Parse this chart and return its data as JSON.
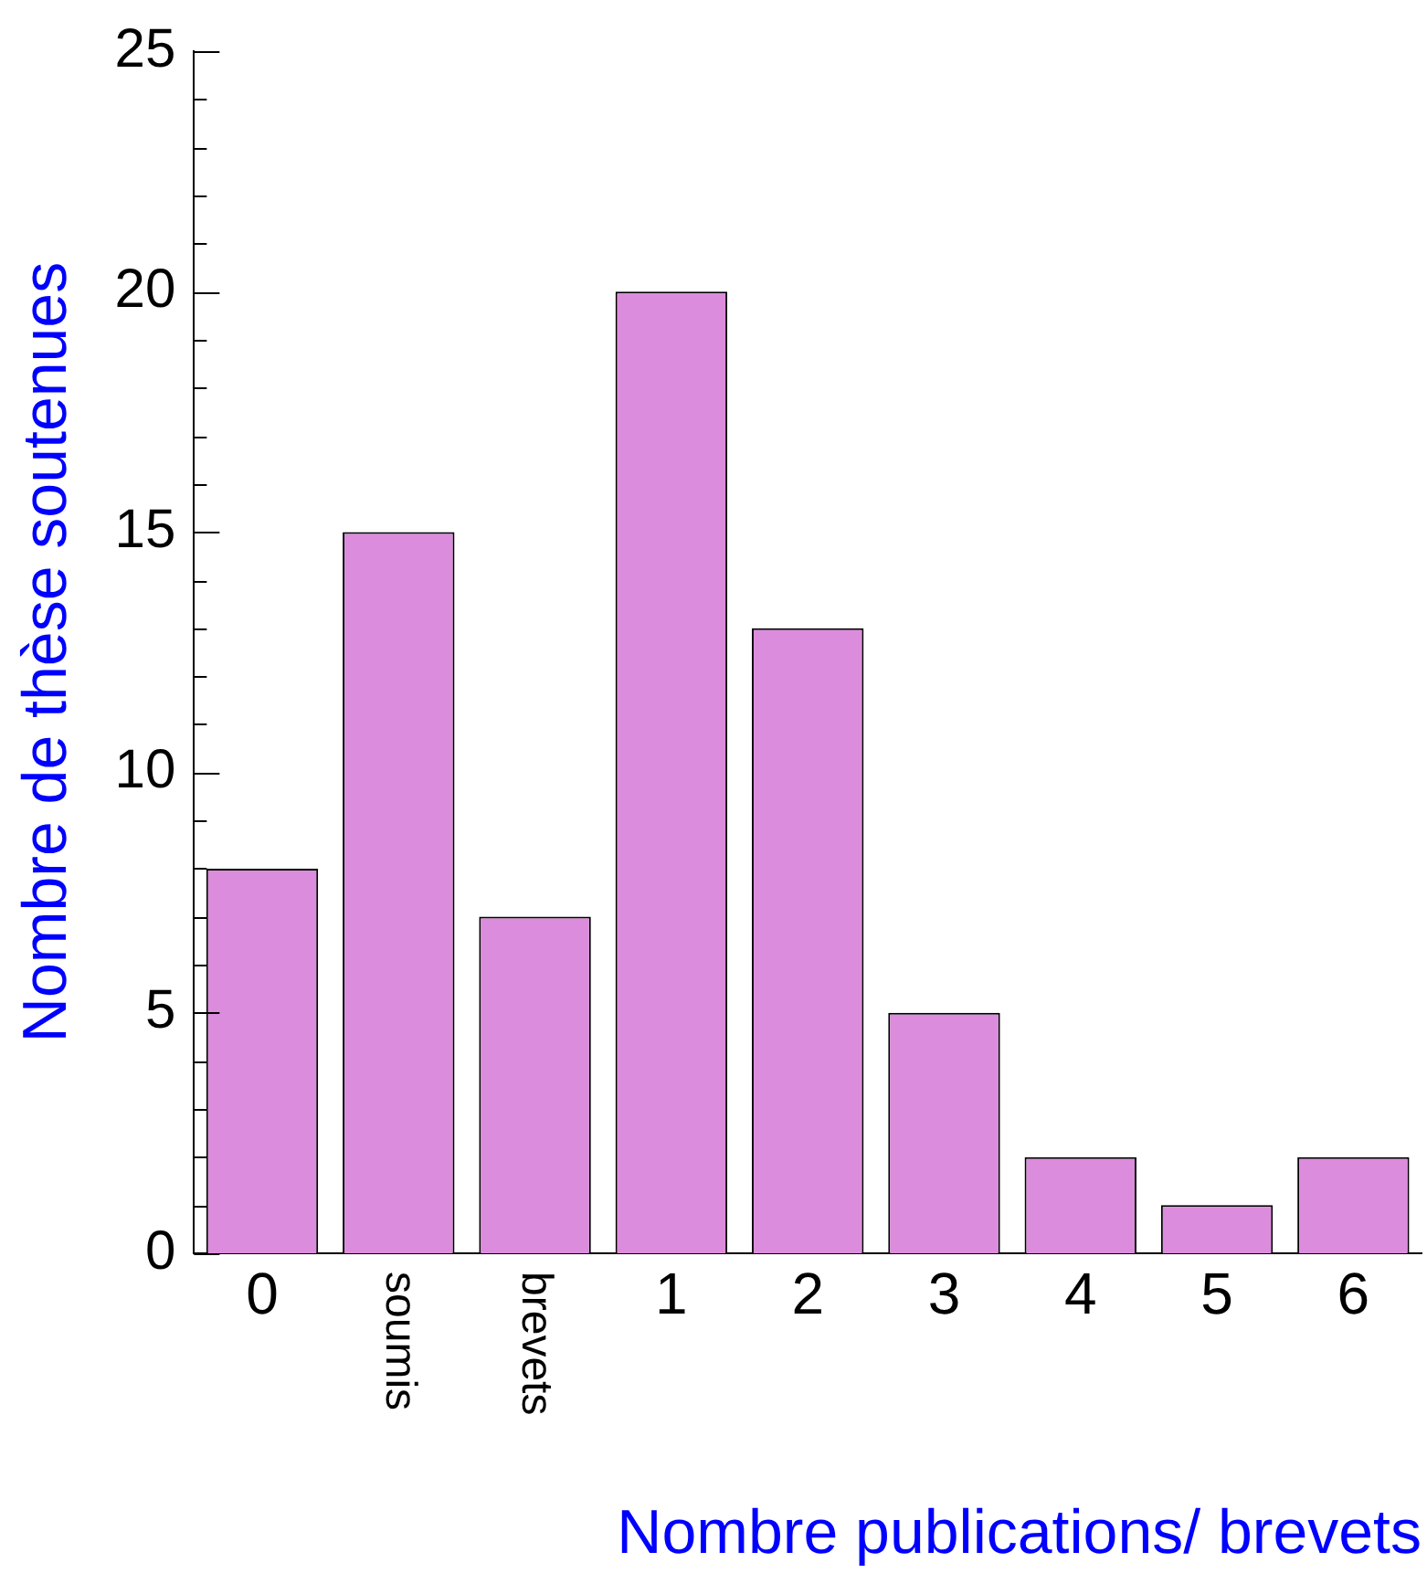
{
  "chart_data": {
    "type": "bar",
    "xlabel": "Nombre publications/ brevets",
    "ylabel": "Nombre de thèse soutenues",
    "categories": [
      "0",
      "soumis",
      "brevets",
      "1",
      "2",
      "3",
      "4",
      "5",
      "6"
    ],
    "values": [
      8,
      15,
      7,
      20,
      13,
      5,
      2,
      1,
      2
    ],
    "color": "#dc8cdc",
    "ylim": [
      0,
      25
    ],
    "yticks": [
      0,
      {
        "value": 1,
        "label": null
      },
      {
        "value": 2,
        "label": null
      },
      {
        "value": 3,
        "label": null
      },
      {
        "value": 4,
        "label": null
      },
      5,
      {
        "value": 6,
        "label": null
      },
      {
        "value": 7,
        "label": null
      },
      {
        "value": 8,
        "label": null
      },
      {
        "value": 9,
        "label": null
      },
      10,
      {
        "value": 11,
        "label": null
      },
      {
        "value": 12,
        "label": null
      },
      {
        "value": 13,
        "label": null
      },
      {
        "value": 14,
        "label": null
      },
      15,
      {
        "value": 16,
        "label": null
      },
      {
        "value": 17,
        "label": null
      },
      {
        "value": 18,
        "label": null
      },
      {
        "value": 19,
        "label": null
      },
      20,
      {
        "value": 21,
        "label": null
      },
      {
        "value": 22,
        "label": null
      },
      {
        "value": 23,
        "label": null
      },
      {
        "value": 24,
        "label": null
      },
      25
    ]
  }
}
